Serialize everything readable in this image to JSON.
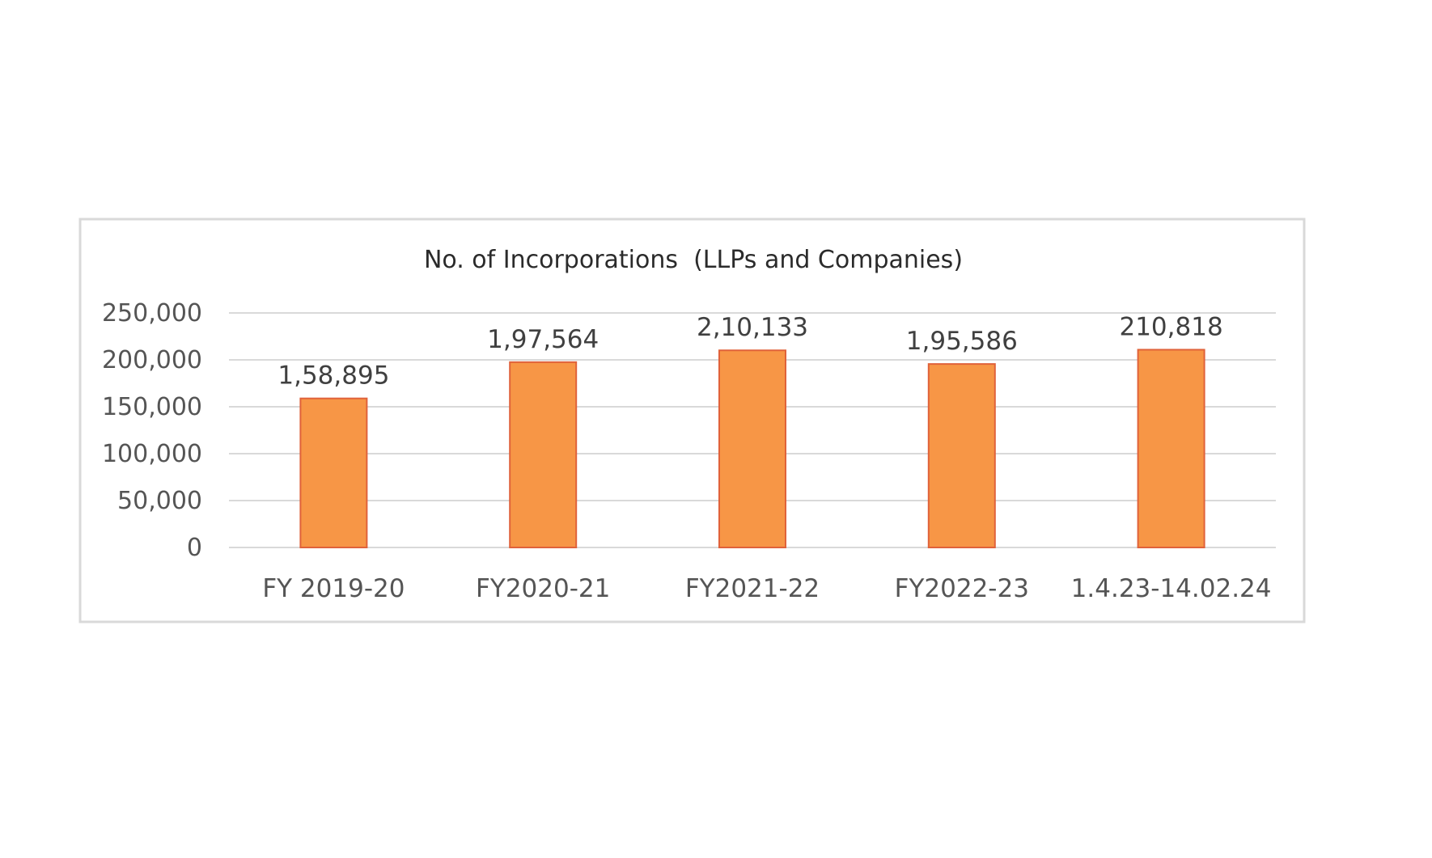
{
  "chart_data": {
    "type": "bar",
    "title": "No. of Incorporations  (LLPs and Companies)",
    "categories": [
      "FY 2019-20",
      "FY2020-21",
      "FY2021-22",
      "FY2022-23",
      "1.4.23-14.02.24"
    ],
    "values": [
      158895,
      197564,
      210133,
      195586,
      210818
    ],
    "data_labels": [
      "1,58,895",
      "1,97,564",
      "2,10,133",
      "1,95,586",
      "210,818"
    ],
    "y_ticks": [
      0,
      50000,
      100000,
      150000,
      200000,
      250000
    ],
    "y_tick_labels": [
      "0",
      "50,000",
      "100,000",
      "150,000",
      "200,000",
      "250,000"
    ],
    "ylim": [
      0,
      250000
    ],
    "xlabel": "",
    "ylabel": "",
    "grid": true,
    "legend": "none",
    "colors": {
      "bar_fill": "#f79646",
      "bar_stroke": "#e0623a",
      "grid": "#d9d9d9",
      "frame": "#d9d9d9"
    }
  }
}
